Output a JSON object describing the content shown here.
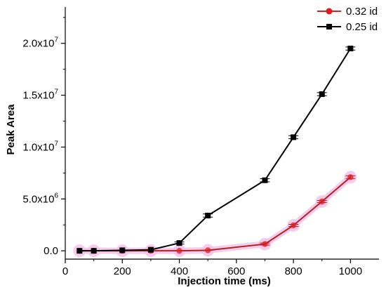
{
  "chart_data": {
    "type": "line",
    "title": "",
    "xlabel": "Injection time (ms)",
    "ylabel": "Peak Area",
    "xlim": [
      0,
      1100
    ],
    "ylim": [
      -800000,
      23500000
    ],
    "x_ticks": [
      0,
      200,
      400,
      600,
      800,
      1000
    ],
    "x_tick_labels": [
      "0",
      "200",
      "400",
      "600",
      "800",
      "1000"
    ],
    "y_ticks": [
      0,
      5000000,
      10000000,
      15000000,
      20000000
    ],
    "y_tick_labels": [
      {
        "mantissa": "0.0",
        "exp": ""
      },
      {
        "mantissa": "5.0x10",
        "exp": "6"
      },
      {
        "mantissa": "1.0x10",
        "exp": "7"
      },
      {
        "mantissa": "1.5x10",
        "exp": "7"
      },
      {
        "mantissa": "2.0x10",
        "exp": "7"
      }
    ],
    "grid": false,
    "legend_position": "top-right",
    "series": [
      {
        "name": "0.32 id",
        "color": "#e0191c",
        "line_color": "#b32020",
        "marker": "circle",
        "halo_color": "#f2c3ea",
        "x": [
          50,
          100,
          200,
          300,
          400,
          500,
          700,
          800,
          900,
          1000
        ],
        "y": [
          0,
          0,
          0,
          0,
          0,
          50000,
          650000,
          2450000,
          4750000,
          7100000
        ],
        "err": [
          0,
          0,
          0,
          0,
          0,
          0,
          100000,
          100000,
          100000,
          130000
        ]
      },
      {
        "name": "0.25 id",
        "color": "#000000",
        "line_color": "#000000",
        "marker": "square",
        "halo_color": "",
        "x": [
          50,
          100,
          200,
          300,
          400,
          500,
          700,
          800,
          900,
          1000
        ],
        "y": [
          0,
          0,
          50000,
          100000,
          750000,
          3400000,
          6800000,
          10950000,
          15100000,
          19500000
        ],
        "err": [
          0,
          0,
          0,
          0,
          100000,
          150000,
          150000,
          150000,
          150000,
          150000
        ]
      }
    ]
  }
}
